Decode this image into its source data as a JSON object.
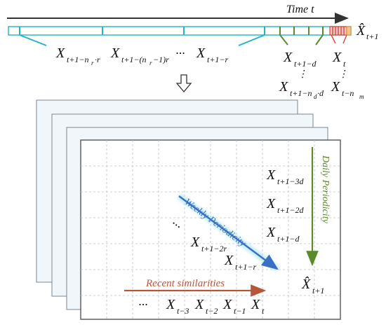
{
  "timeline": {
    "axis_label": "Time t",
    "prediction": {
      "base": "X̂",
      "sub": "t+1"
    },
    "weekly_samples": [
      {
        "base": "X",
        "sub": "t+1−n",
        "subsub": "r",
        "tail": "·r"
      },
      {
        "base": "X",
        "sub": "t+1−(n",
        "subsub": "r",
        "tail": "−1)r"
      },
      {
        "base": "X",
        "sub": "t+1−r"
      }
    ],
    "daily_samples": [
      {
        "base": "X",
        "sub": "t+1−d"
      },
      {
        "base": "X",
        "sub": "t+1−n",
        "subsub": "d",
        "tail": "·d"
      }
    ],
    "recent_samples": [
      {
        "base": "X",
        "sub": "t"
      },
      {
        "base": "X",
        "sub": "t−n",
        "subsub": "m"
      }
    ],
    "ellipsis": "···",
    "vdots": "⋮"
  },
  "grid_panel": {
    "daily_label": "Daily Periodicity",
    "weekly_label": "Weekly Periodicity",
    "recent_label": "Recent similarities",
    "daily_terms": [
      {
        "base": "X",
        "sub": "t+1−3d"
      },
      {
        "base": "X",
        "sub": "t+1−2d"
      },
      {
        "base": "X",
        "sub": "t+1−d"
      }
    ],
    "weekly_terms": [
      {
        "base": "X",
        "sub": "t+1−2r"
      },
      {
        "base": "X",
        "sub": "t+1−r"
      }
    ],
    "recent_terms": [
      {
        "base": "X",
        "sub": "t−3"
      },
      {
        "base": "X",
        "sub": "t−2"
      },
      {
        "base": "X",
        "sub": "t−1"
      },
      {
        "base": "X",
        "sub": "t"
      }
    ],
    "prediction": {
      "base": "X̂",
      "sub": "t+1"
    },
    "ellipsis": "···"
  },
  "colors": {
    "weekly": "#1fb5c4",
    "daily": "#5a8a2a",
    "recent": "#d9453a",
    "weekly_arrow": "#3a6fc4",
    "recent_arrow": "#b5563a",
    "panel_border": "#555555"
  }
}
